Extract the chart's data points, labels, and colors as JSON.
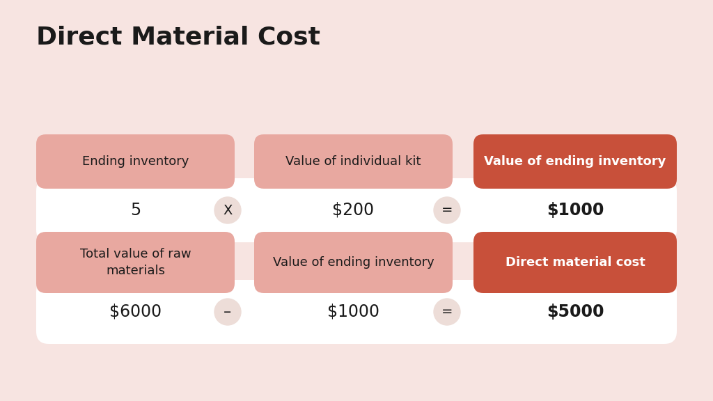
{
  "title": "Direct Material Cost",
  "background_color": "#f7e4e1",
  "title_color": "#1a1a1a",
  "title_fontsize": 26,
  "title_fontweight": "bold",
  "row1_label1": "Ending inventory",
  "row1_label2": "Value of individual kit",
  "row1_label3": "Value of ending inventory",
  "row1_val1": "5",
  "row1_op": "X",
  "row1_val2": "$200",
  "row1_eq": "=",
  "row1_val3": "$1000",
  "row2_label1": "Total value of raw\nmaterials",
  "row2_label2": "Value of ending inventory",
  "row2_label3": "Direct material cost",
  "row2_val1": "$6000",
  "row2_op": "–",
  "row2_val2": "$1000",
  "row2_eq": "=",
  "row2_val3": "$5000",
  "label_bg_pink": "#e8a8a0",
  "label_bg_red": "#c8503a",
  "value_row_bg": "#ffffff",
  "operator_bg": "#edddd8",
  "label_text_dark": "#1a1a1a",
  "label_text_white": "#ffffff",
  "value_text_dark": "#1a1a1a"
}
